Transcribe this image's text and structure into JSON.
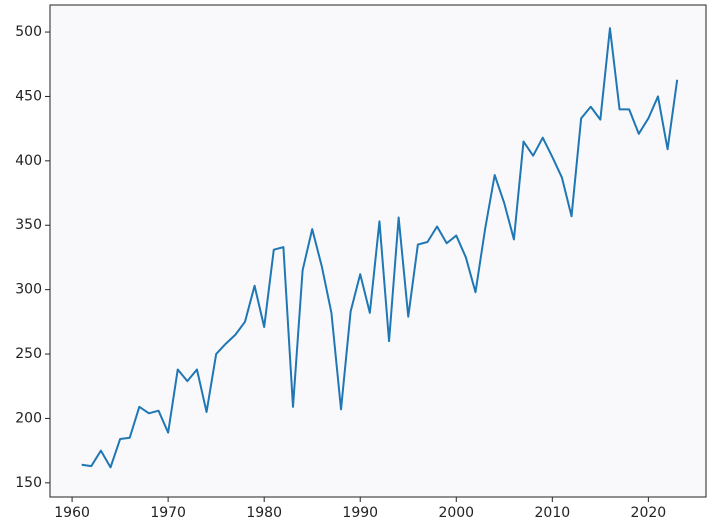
{
  "chart_data": {
    "type": "line",
    "x": [
      1961,
      1962,
      1963,
      1964,
      1965,
      1966,
      1967,
      1968,
      1969,
      1970,
      1971,
      1972,
      1973,
      1974,
      1975,
      1976,
      1977,
      1978,
      1979,
      1980,
      1981,
      1982,
      1983,
      1984,
      1985,
      1986,
      1987,
      1988,
      1989,
      1990,
      1991,
      1992,
      1993,
      1994,
      1995,
      1996,
      1997,
      1998,
      1999,
      2000,
      2001,
      2002,
      2003,
      2004,
      2005,
      2006,
      2007,
      2008,
      2009,
      2010,
      2011,
      2012,
      2013,
      2014,
      2015,
      2016,
      2017,
      2018,
      2019,
      2020,
      2021,
      2022,
      2023
    ],
    "series": [
      {
        "color": "#1f77b4",
        "values": [
          164,
          163,
          175,
          162,
          184,
          185,
          209,
          204,
          206,
          189,
          238,
          229,
          238,
          205,
          250,
          258,
          265,
          275,
          303,
          271,
          331,
          333,
          209,
          315,
          347,
          318,
          282,
          207,
          283,
          312,
          282,
          353,
          260,
          356,
          279,
          335,
          337,
          349,
          336,
          342,
          325,
          298,
          347,
          389,
          367,
          339,
          415,
          404,
          418,
          403,
          387,
          357,
          433,
          442,
          432,
          503,
          440,
          440,
          421,
          433,
          450,
          409,
          463
        ]
      }
    ],
    "xlim": [
      1957.7,
      2026
    ],
    "xticks": [
      1960,
      1970,
      1980,
      1990,
      2000,
      2010,
      2020
    ],
    "ylim": [
      139,
      521
    ],
    "yticks": [
      150,
      200,
      250,
      300,
      350,
      400,
      450,
      500
    ],
    "grid": false
  }
}
